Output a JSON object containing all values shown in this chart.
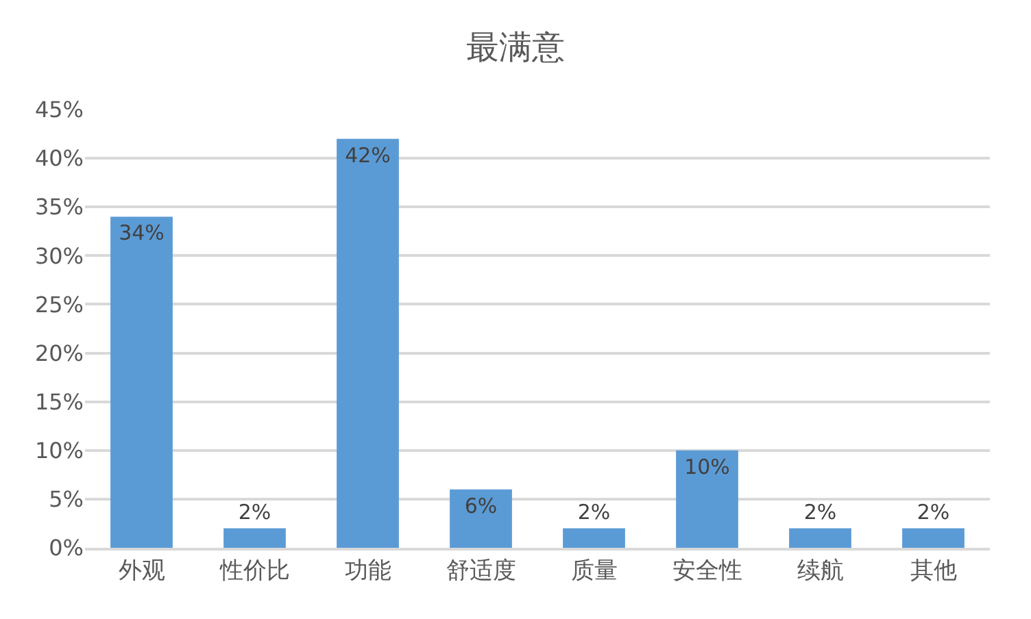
{
  "chart_data": {
    "type": "bar",
    "title": "最满意",
    "categories": [
      "外观",
      "性价比",
      "功能",
      "舒适度",
      "质量",
      "安全性",
      "续航",
      "其他"
    ],
    "values": [
      34,
      2,
      42,
      6,
      2,
      10,
      2,
      2
    ],
    "value_labels": [
      "34%",
      "2%",
      "42%",
      "6%",
      "2%",
      "10%",
      "2%",
      "2%"
    ],
    "color": "#5b9bd5",
    "ylim": [
      0,
      45
    ],
    "yticks": [
      {
        "value": 0,
        "label": "0%"
      },
      {
        "value": 5,
        "label": "5%"
      },
      {
        "value": 10,
        "label": "10%"
      },
      {
        "value": 15,
        "label": "15%"
      },
      {
        "value": 20,
        "label": "20%"
      },
      {
        "value": 25,
        "label": "25%"
      },
      {
        "value": 30,
        "label": "30%"
      },
      {
        "value": 35,
        "label": "35%"
      },
      {
        "value": 40,
        "label": "40%"
      },
      {
        "value": 45,
        "label": "45%"
      }
    ],
    "grid": "y",
    "legend": false
  }
}
